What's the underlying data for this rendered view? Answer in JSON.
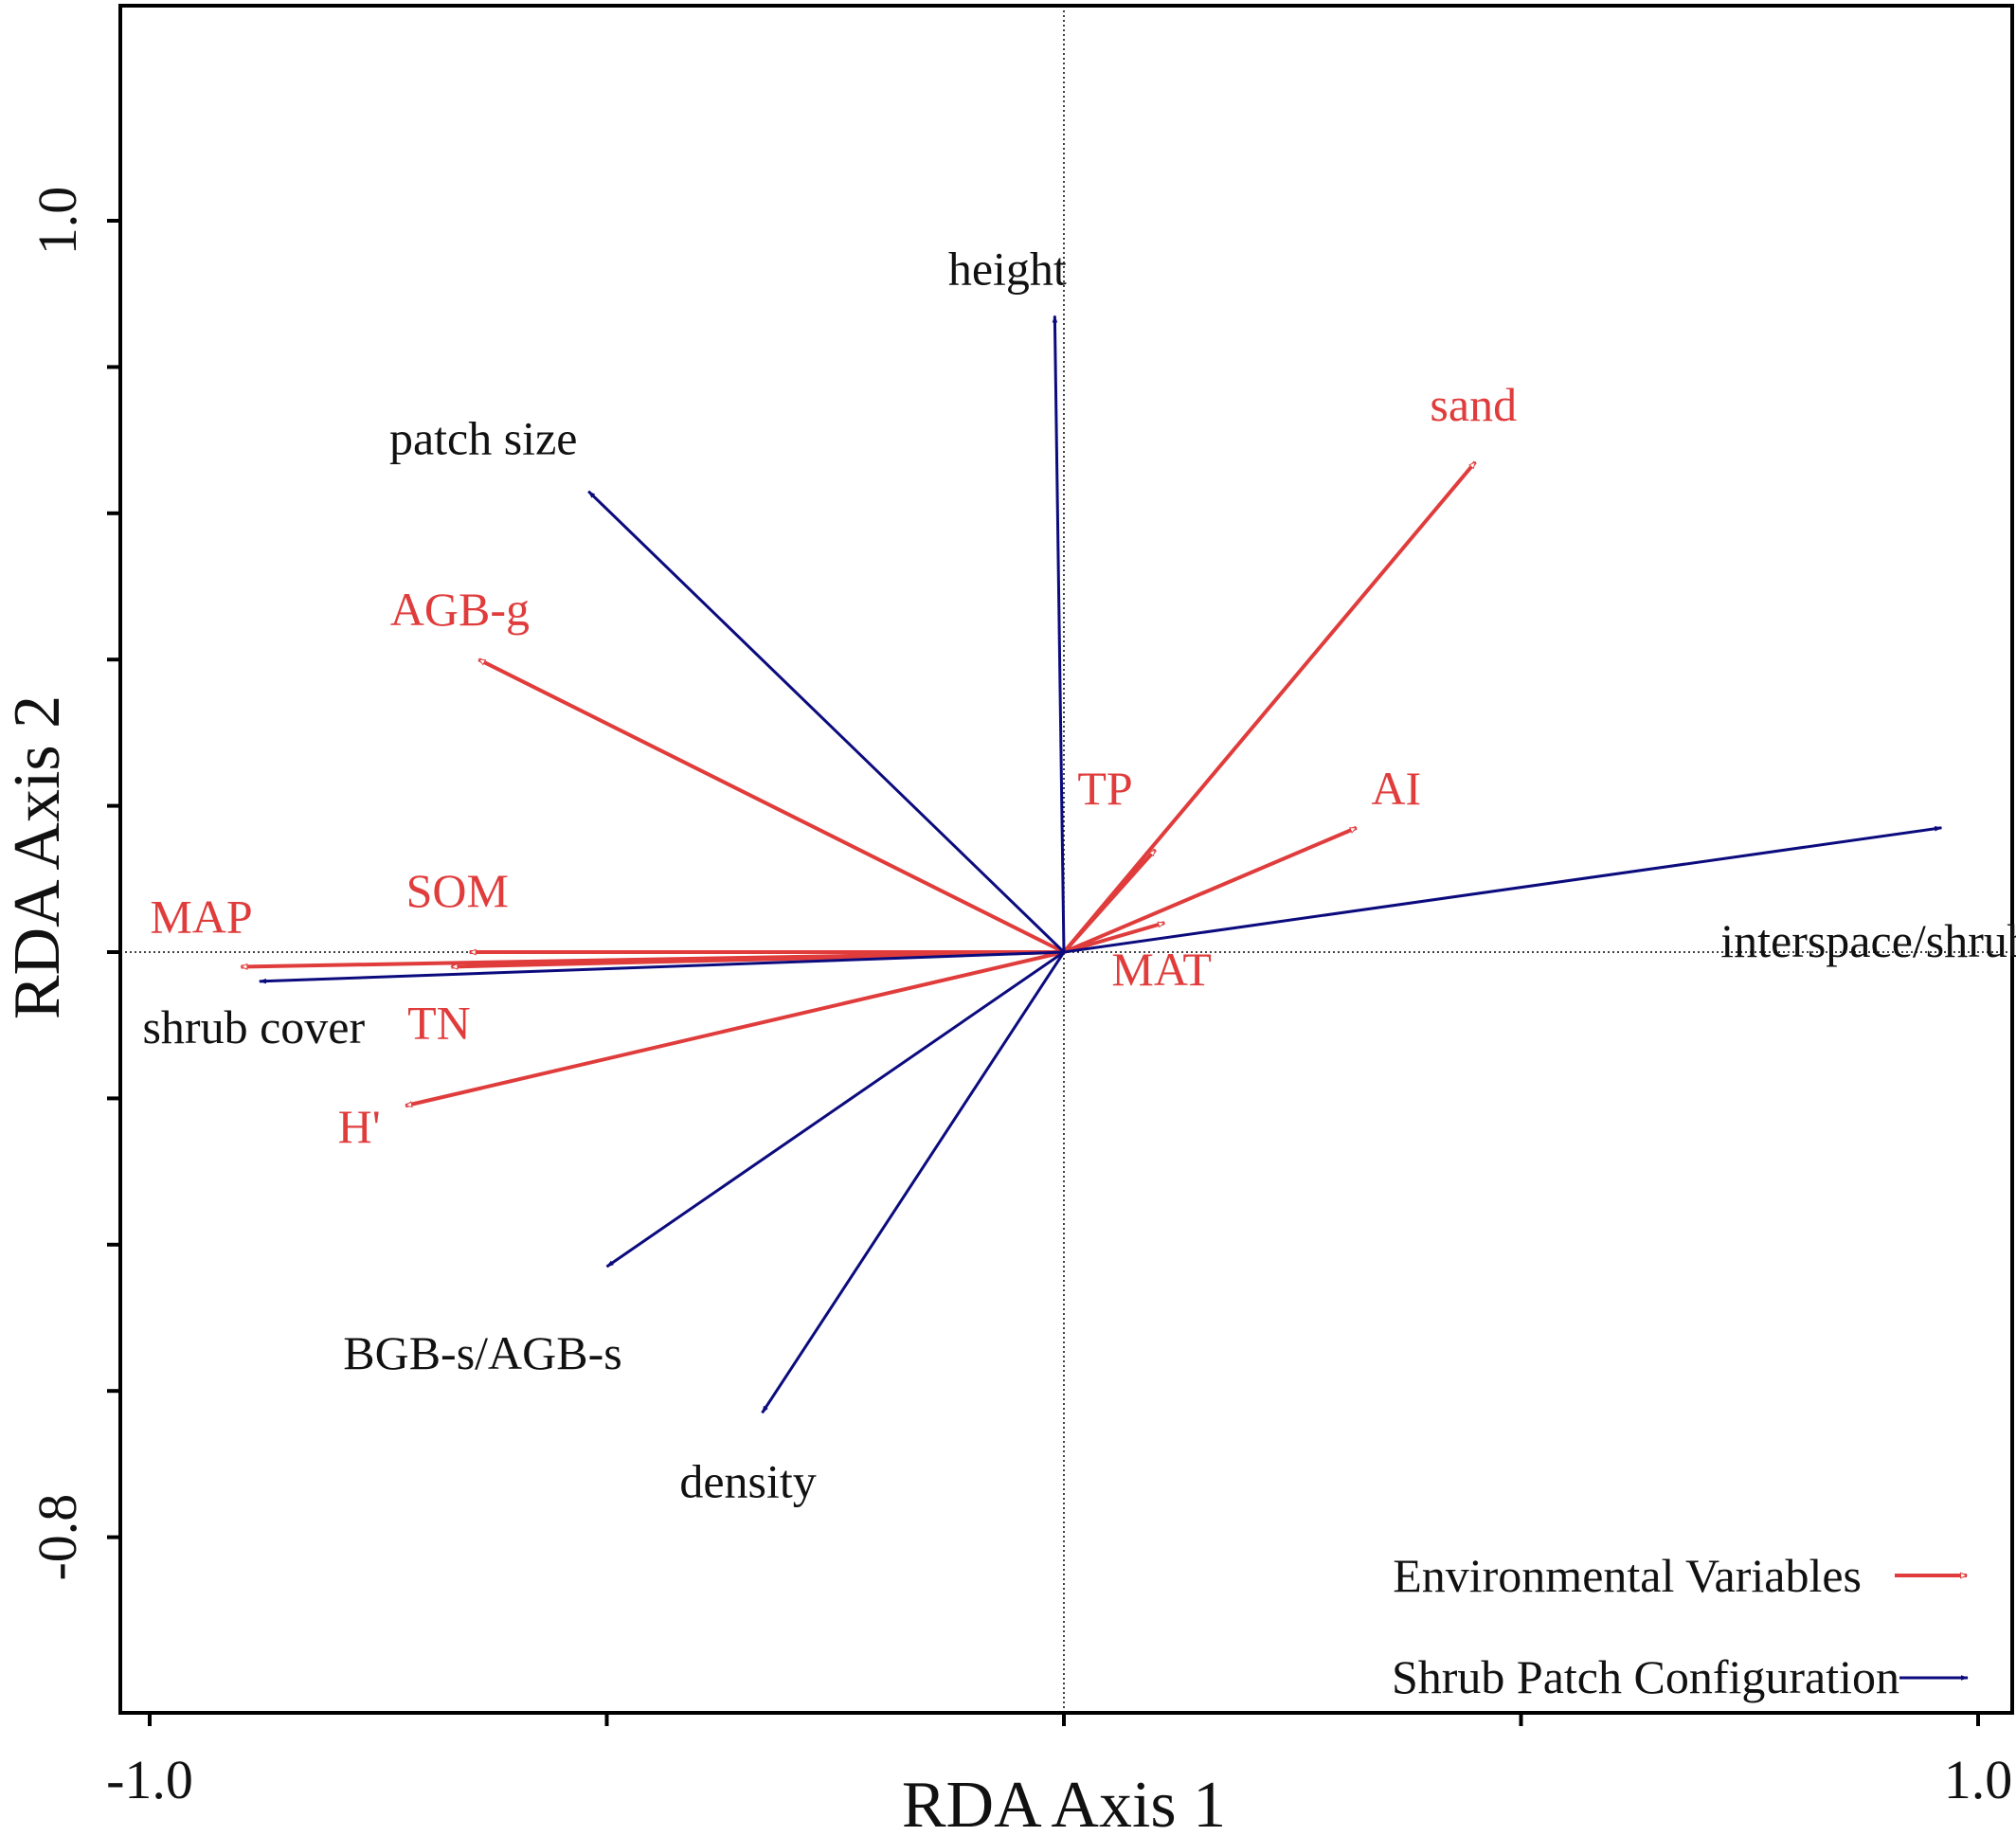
{
  "chart_data": {
    "type": "biplot",
    "xlabel": "RDA Axis 1",
    "ylabel": "RDA Axis 2",
    "xlim": [
      -1.0,
      1.0
    ],
    "ylim": [
      -0.8,
      1.0
    ],
    "x_tick_labels": [
      "-1.0",
      "1.0"
    ],
    "y_tick_labels": [
      "1.0",
      "-0.8"
    ],
    "grid": false,
    "legend_position": "bottom-right",
    "legend": [
      {
        "label": "Environmental Variables",
        "style": "open-arrow",
        "color": "#e03c3c"
      },
      {
        "label": "Shrub Patch Configuration",
        "style": "filled-arrow",
        "color": "#0b0b7e"
      }
    ],
    "series": [
      {
        "name": "Environmental Variables",
        "color": "#e03c3c",
        "vectors": [
          {
            "label": "sand",
            "x": 0.45,
            "y": 0.67
          },
          {
            "label": "AI",
            "x": 0.32,
            "y": 0.17
          },
          {
            "label": "TP",
            "x": 0.1,
            "y": 0.14
          },
          {
            "label": "MAT",
            "x": 0.11,
            "y": 0.04
          },
          {
            "label": "AGB-g",
            "x": -0.64,
            "y": 0.4
          },
          {
            "label": "SOM",
            "x": -0.65,
            "y": 0.0
          },
          {
            "label": "TN",
            "x": -0.67,
            "y": -0.02
          },
          {
            "label": "MAP",
            "x": -0.9,
            "y": -0.02
          },
          {
            "label": "H'",
            "x": -0.72,
            "y": -0.21
          }
        ]
      },
      {
        "name": "Shrub Patch Configuration",
        "color": "#0b0b7e",
        "vectors": [
          {
            "label": "height",
            "x": -0.01,
            "y": 0.87
          },
          {
            "label": "patch size",
            "x": -0.52,
            "y": 0.63
          },
          {
            "label": "interspace/shrub radius",
            "x": 0.96,
            "y": 0.17
          },
          {
            "label": "shrub cover",
            "x": -0.88,
            "y": -0.04
          },
          {
            "label": "BGB-s/AGB-s",
            "x": -0.5,
            "y": -0.43
          },
          {
            "label": "density",
            "x": -0.33,
            "y": -0.63
          }
        ]
      }
    ]
  }
}
